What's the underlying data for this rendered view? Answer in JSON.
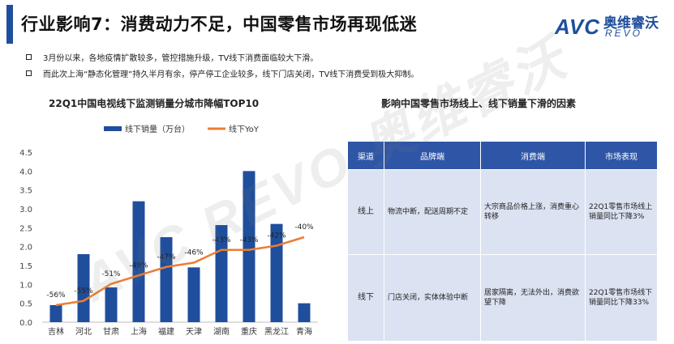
{
  "header": {
    "title": "行业影响7：消费动力不足，中国零售市场再现低迷",
    "logo_avc": "AVC",
    "logo_cn": "奥维睿沃",
    "logo_en": "REVO"
  },
  "bullets": [
    "3月份以来，各地疫情扩散较多，管控措施升级，TV线下消费面临较大下滑。",
    "而此次上海“静态化管理”持久半月有余，停产停工企业较多，线下门店关闭，TV线下消费受到极大抑制。"
  ],
  "watermark": "AVC REVO 奥维睿沃",
  "chart_data": {
    "type": "bar",
    "title": "22Q1中国电视线下监测销量分城市降幅TOP10",
    "categories": [
      "吉林",
      "河北",
      "甘肃",
      "上海",
      "福建",
      "天津",
      "湖南",
      "重庆",
      "黑龙江",
      "青海"
    ],
    "series": [
      {
        "name": "线下销量（万台）",
        "type": "bar",
        "color": "#1f4e9c",
        "values": [
          0.45,
          1.8,
          0.92,
          3.2,
          2.25,
          1.45,
          2.57,
          4.0,
          2.6,
          0.5
        ]
      },
      {
        "name": "线下YoY",
        "type": "line",
        "color": "#ed7d31",
        "values": [
          -56,
          -55,
          -51,
          -49,
          -47,
          -46,
          -43,
          -43,
          -42,
          -40
        ]
      }
    ],
    "data_labels": [
      "-56%",
      "-55%",
      "-51%",
      "-49%",
      "-47%",
      "-46%",
      "-43%",
      "-43%",
      "-42%",
      "-40%"
    ],
    "yticks": [
      "0.0",
      "0.5",
      "1.0",
      "1.5",
      "2.0",
      "2.5",
      "3.0",
      "3.5",
      "4.0",
      "4.5"
    ],
    "ylim": [
      0,
      4.5
    ],
    "legend": "top"
  },
  "right": {
    "title": "影响中国零售市场线上、线下销量下滑的因素",
    "headers": [
      "渠道",
      "品牌端",
      "消费端",
      "市场表现"
    ],
    "rows": [
      [
        "线上",
        "物流中断，配送周期不定",
        "大宗商品价格上涨，消费重心转移",
        "22Q1零售市场线上销量同比下降3%"
      ],
      [
        "线下",
        "门店关闭，实体体验中断",
        "居家隔离，无法外出，消费欲望下降",
        "22Q1零售市场线下销量同比下降33%"
      ]
    ]
  }
}
